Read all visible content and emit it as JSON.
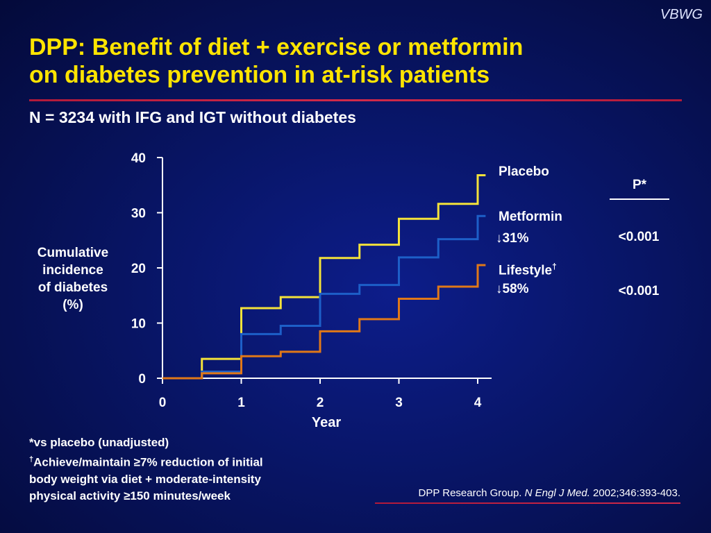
{
  "header": {
    "brand": "VBWG",
    "title_line1": "DPP: Benefit of diet + exercise or metformin",
    "title_line2": "on diabetes prevention in at-risk patients",
    "subtitle": "N = 3234 with IFG and IGT without diabetes"
  },
  "colors": {
    "title": "#ffe400",
    "placebo": "#f4e23a",
    "metformin": "#1d5fc8",
    "lifestyle": "#e07818",
    "accent_rule": "#c7234a"
  },
  "chart_data": {
    "type": "line",
    "step": true,
    "ylabel": "Cumulative\nincidence\nof diabetes\n(%)",
    "xlabel": "Year",
    "ylim": [
      0,
      40
    ],
    "xlim": [
      0,
      4
    ],
    "y_ticks": [
      "0",
      "10",
      "20",
      "30",
      "40"
    ],
    "x_ticks": [
      "0",
      "1",
      "2",
      "3",
      "4"
    ],
    "series": [
      {
        "name": "Placebo",
        "steps": [
          [
            0,
            0
          ],
          [
            0.5,
            3.5
          ],
          [
            1,
            12.7
          ],
          [
            1.5,
            14.7
          ],
          [
            2,
            21.8
          ],
          [
            2.5,
            24.2
          ],
          [
            3,
            28.9
          ],
          [
            3.5,
            31.6
          ],
          [
            4,
            36.8
          ],
          [
            4.1,
            36.8
          ]
        ]
      },
      {
        "name": "Metformin",
        "steps": [
          [
            0,
            0
          ],
          [
            0.5,
            1.2
          ],
          [
            1,
            8.0
          ],
          [
            1.5,
            9.5
          ],
          [
            2,
            15.3
          ],
          [
            2.5,
            16.9
          ],
          [
            3,
            21.9
          ],
          [
            3.5,
            25.2
          ],
          [
            4,
            29.4
          ],
          [
            4.1,
            29.4
          ]
        ]
      },
      {
        "name": "Lifestyle",
        "steps": [
          [
            0,
            0
          ],
          [
            0.5,
            0.9
          ],
          [
            1,
            4.0
          ],
          [
            1.5,
            4.8
          ],
          [
            2,
            8.5
          ],
          [
            2.5,
            10.7
          ],
          [
            3,
            14.4
          ],
          [
            3.5,
            16.6
          ],
          [
            4,
            20.5
          ],
          [
            4.1,
            20.5
          ]
        ]
      }
    ]
  },
  "legend": {
    "placebo": "Placebo",
    "metformin": "Metformin",
    "metformin_reduction": "31%",
    "lifestyle": "Lifestyle",
    "lifestyle_mark": "†",
    "lifestyle_reduction": "58%",
    "down_arrow": "↓"
  },
  "pvalues": {
    "header": "P*",
    "metformin": "<0.001",
    "lifestyle": "<0.001"
  },
  "footnotes": {
    "line1": "*vs placebo (unadjusted)",
    "dagger": "†",
    "line2": "Achieve/maintain ≥7% reduction of initial",
    "line3": "body weight via diet + moderate-intensity",
    "line4": "physical activity ≥150 minutes/week"
  },
  "reference": {
    "authors": "DPP Research Group.",
    "journal": "N Engl J Med.",
    "citation": "2002;346:393-403."
  }
}
